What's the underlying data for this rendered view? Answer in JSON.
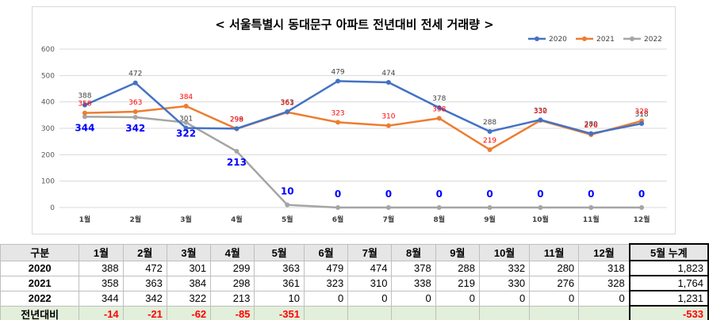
{
  "colors": {
    "s2020": "#4472c4",
    "s2021": "#ed7d31",
    "s2022": "#a5a5a5",
    "blue_label": "#0000ff",
    "red_label": "#ff0000",
    "diff_bg": "#e2efda"
  },
  "chart_data": {
    "type": "line",
    "title": "< 서울특별시 동대문구 아파트 전년대비 전세 거래량 >",
    "categories": [
      "1월",
      "2월",
      "3월",
      "4월",
      "5월",
      "6월",
      "7월",
      "8월",
      "9월",
      "10월",
      "11월",
      "12월"
    ],
    "ylim": [
      0,
      600
    ],
    "yticks": [
      "0",
      "100",
      "200",
      "300",
      "400",
      "500",
      "600"
    ],
    "grid": true,
    "legend_position": "top-right",
    "series": [
      {
        "name": "2020",
        "color": "#4472c4",
        "values": [
          388,
          472,
          301,
          299,
          363,
          479,
          474,
          378,
          288,
          332,
          280,
          318
        ]
      },
      {
        "name": "2021",
        "color": "#ed7d31",
        "values": [
          358,
          363,
          384,
          298,
          361,
          323,
          310,
          338,
          219,
          330,
          276,
          328
        ]
      },
      {
        "name": "2022",
        "color": "#a5a5a5",
        "values": [
          344,
          342,
          322,
          213,
          10,
          0,
          0,
          0,
          0,
          0,
          0,
          0
        ]
      }
    ]
  },
  "table": {
    "header": [
      "구분",
      "1월",
      "2월",
      "3월",
      "4월",
      "5월",
      "6월",
      "7월",
      "8월",
      "9월",
      "10월",
      "11월",
      "12월",
      "5월 누계"
    ],
    "rows": [
      {
        "label": "2020",
        "cells": [
          "388",
          "472",
          "301",
          "299",
          "363",
          "479",
          "474",
          "378",
          "288",
          "332",
          "280",
          "318",
          "1,823"
        ]
      },
      {
        "label": "2021",
        "cells": [
          "358",
          "363",
          "384",
          "298",
          "361",
          "323",
          "310",
          "338",
          "219",
          "330",
          "276",
          "328",
          "1,764"
        ]
      },
      {
        "label": "2022",
        "cells": [
          "344",
          "342",
          "322",
          "213",
          "10",
          "0",
          "0",
          "0",
          "0",
          "0",
          "0",
          "0",
          "1,231"
        ]
      },
      {
        "label": "전년대비",
        "cells": [
          "-14",
          "-21",
          "-62",
          "-85",
          "-351",
          "",
          "",
          "",
          "",
          "",
          "",
          "",
          "-533"
        ]
      }
    ]
  }
}
